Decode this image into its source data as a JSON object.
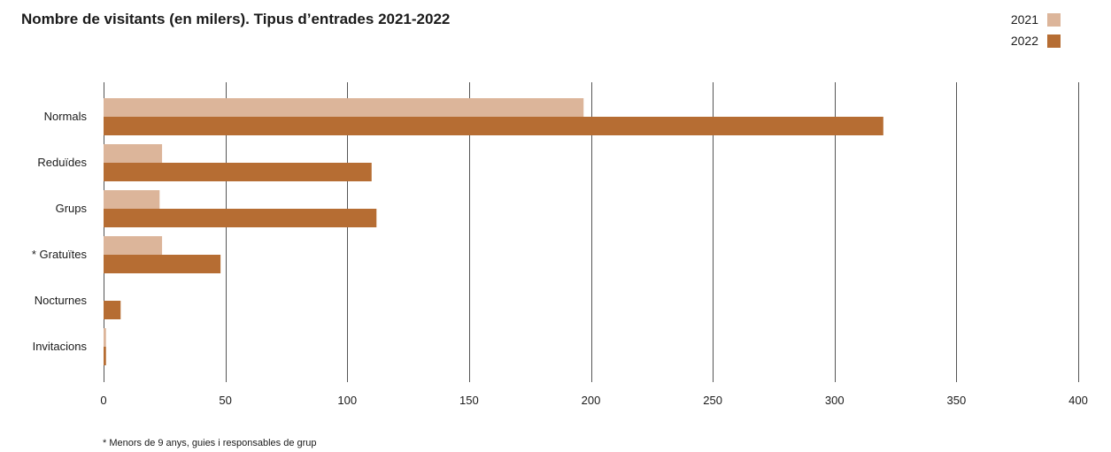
{
  "chart_data": {
    "type": "bar",
    "orientation": "horizontal",
    "title": "Nombre de visitants (en milers). Tipus d’entrades 2021-2022",
    "categories": [
      "Normals",
      "Reduïdes",
      "Grups",
      "* Gratuïtes",
      "Nocturnes",
      "Invitacions"
    ],
    "series": [
      {
        "name": "2021",
        "color": "#dcb59a",
        "values": [
          197,
          24,
          23,
          24,
          0,
          1
        ]
      },
      {
        "name": "2022",
        "color": "#b66d33",
        "values": [
          320,
          110,
          112,
          48,
          7,
          1
        ]
      }
    ],
    "xlim": [
      0,
      400
    ],
    "xticks": [
      0,
      50,
      100,
      150,
      200,
      250,
      300,
      350,
      400
    ],
    "grid": true,
    "legend_position": "top-right",
    "footnote": "* Menors de 9 anys, guies i responsables de grup"
  }
}
